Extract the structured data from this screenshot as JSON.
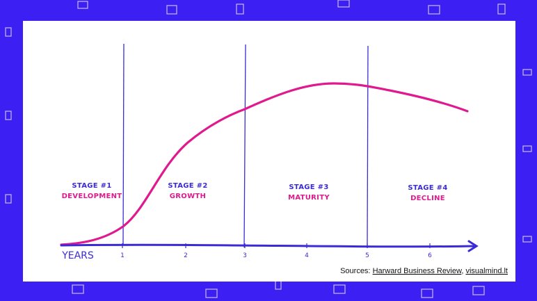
{
  "axis": {
    "label": "YEARS",
    "ticks": [
      "1",
      "2",
      "3",
      "4",
      "5",
      "6"
    ]
  },
  "stages": [
    {
      "number": "STAGE #1",
      "name": "DEVELOPMENT"
    },
    {
      "number": "STAGE #2",
      "name": "GROWTH"
    },
    {
      "number": "STAGE #3",
      "name": "MATURITY"
    },
    {
      "number": "STAGE #4",
      "name": "DECLINE"
    }
  ],
  "sources": {
    "prefix": "Sources:",
    "links": [
      "Harward Business Review",
      "visualmind.lt"
    ],
    "separator": ","
  }
}
